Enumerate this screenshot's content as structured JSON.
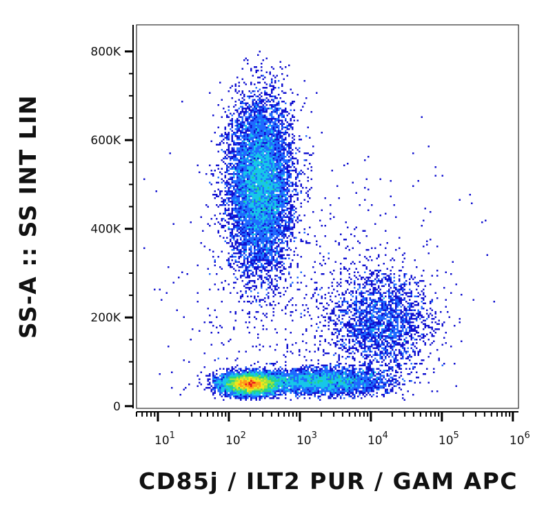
{
  "chart_data": {
    "type": "scatter",
    "subtype": "flow-cytometry-density-dot-plot",
    "title": "",
    "xlabel": "CD85j / ILT2 PUR / GAM APC",
    "ylabel": "SS-A :: SS INT LIN",
    "x_scale": "log",
    "y_scale": "linear",
    "xlim": [
      5,
      1200000
    ],
    "ylim": [
      -5000,
      860000
    ],
    "x_ticks": [
      {
        "base": "10",
        "exp": "1",
        "value": 10
      },
      {
        "base": "10",
        "exp": "2",
        "value": 100
      },
      {
        "base": "10",
        "exp": "3",
        "value": 1000
      },
      {
        "base": "10",
        "exp": "4",
        "value": 10000
      },
      {
        "base": "10",
        "exp": "5",
        "value": 100000
      },
      {
        "base": "10",
        "exp": "6",
        "value": 1000000
      }
    ],
    "y_ticks": [
      {
        "label": "0",
        "value": 0
      },
      {
        "label": "200K",
        "value": 200000
      },
      {
        "label": "400K",
        "value": 400000
      },
      {
        "label": "600K",
        "value": 600000
      },
      {
        "label": "800K",
        "value": 800000
      }
    ],
    "grid": false,
    "color_scale": [
      "#1010d0",
      "#1f6bff",
      "#17c7e8",
      "#22d48a",
      "#9ee43a",
      "#f5e41c",
      "#ff9a1a",
      "#e8141c"
    ],
    "populations": [
      {
        "x_center": 280,
        "y_center": 500000,
        "x_spread_decades": 0.22,
        "y_spread": 95000,
        "count": 9000
      },
      {
        "x_center": 200,
        "y_center": 50000,
        "x_spread_decades": 0.2,
        "y_spread": 12000,
        "count": 7000
      },
      {
        "x_center": 2000,
        "y_center": 55000,
        "x_spread_decades": 0.45,
        "y_spread": 15000,
        "count": 3500
      },
      {
        "x_center": 14000,
        "y_center": 190000,
        "x_spread_decades": 0.35,
        "y_spread": 55000,
        "count": 2200
      },
      {
        "x_center": 1500,
        "y_center": 250000,
        "x_spread_decades": 1.0,
        "y_spread": 150000,
        "count": 700
      }
    ]
  }
}
